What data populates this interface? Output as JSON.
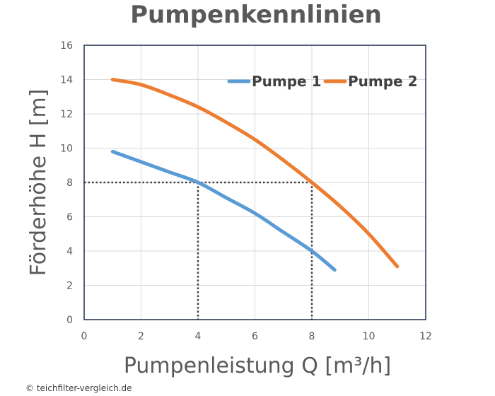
{
  "chart_data": {
    "type": "line",
    "title": "Pumpenkennlinien",
    "xlabel": "Pumpenleistung Q [m³/h]",
    "ylabel": "Förderhöhe  H [m]",
    "xlim": [
      0,
      12
    ],
    "ylim": [
      0,
      16
    ],
    "xticks": [
      0,
      2,
      4,
      6,
      8,
      10,
      12
    ],
    "yticks": [
      0,
      2,
      4,
      6,
      8,
      10,
      12,
      14,
      16
    ],
    "grid": true,
    "legend_position": "top-right",
    "series": [
      {
        "name": "Pumpe 1",
        "color": "#5B9BD5",
        "x": [
          1.0,
          2.0,
          3.0,
          4.0,
          5.0,
          6.0,
          7.0,
          8.0,
          8.8
        ],
        "y": [
          9.8,
          9.2,
          8.6,
          8.0,
          7.1,
          6.2,
          5.1,
          4.0,
          2.9
        ]
      },
      {
        "name": "Pumpe 2",
        "color": "#ED7D31",
        "x": [
          1.0,
          2.0,
          3.0,
          4.0,
          5.0,
          6.0,
          7.0,
          8.0,
          9.0,
          10.0,
          11.0
        ],
        "y": [
          14.0,
          13.7,
          13.1,
          12.4,
          11.5,
          10.5,
          9.3,
          8.0,
          6.6,
          5.0,
          3.1
        ]
      }
    ],
    "reference_lines": [
      {
        "y": 8,
        "x_points": [
          4,
          8
        ]
      }
    ]
  },
  "footer": {
    "copyright": "© teichfilter-vergleich.de"
  }
}
